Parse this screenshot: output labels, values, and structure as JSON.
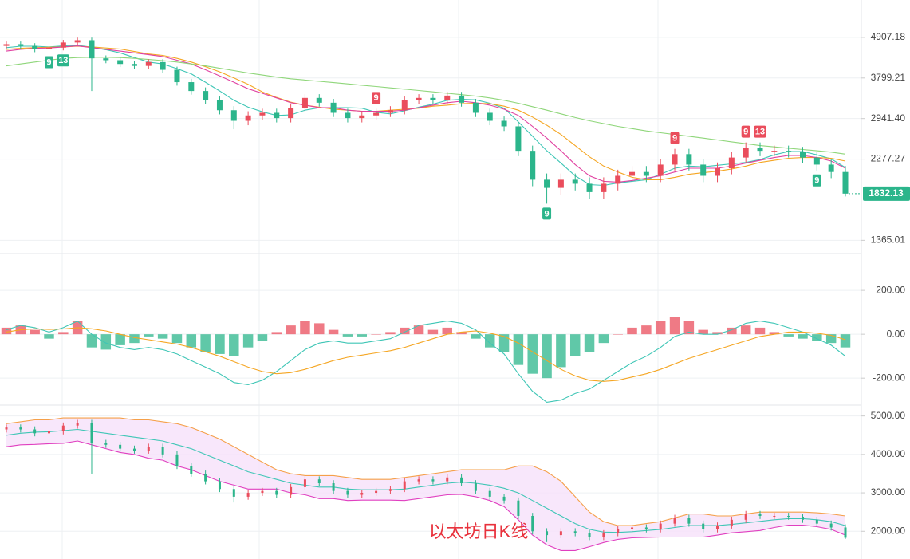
{
  "chart_data": [
    {
      "type": "candlestick",
      "open": [
        4650,
        4700,
        4650,
        4550,
        4600,
        4750,
        4820,
        4300,
        4250,
        4150,
        4100,
        4200,
        4000,
        3700,
        3500,
        3300,
        3100,
        2900,
        3000,
        3050,
        2950,
        3150,
        3350,
        3250,
        3050,
        2950,
        3000,
        3050,
        3100,
        3300,
        3350,
        3300,
        3400,
        3250,
        3050,
        2900,
        2800,
        2400,
        2000,
        1900,
        2000,
        1950,
        1850,
        1950,
        2050,
        2100,
        2050,
        2200,
        2350,
        2200,
        2050,
        2150,
        2300,
        2450,
        2400,
        2400,
        2380,
        2300,
        2200,
        2100
      ],
      "high": [
        4780,
        4780,
        4730,
        4680,
        4830,
        4900,
        4900,
        4380,
        4330,
        4230,
        4280,
        4280,
        4080,
        3780,
        3580,
        3380,
        3180,
        3080,
        3130,
        3130,
        3230,
        3430,
        3430,
        3330,
        3130,
        3080,
        3130,
        3180,
        3380,
        3430,
        3430,
        3480,
        3480,
        3330,
        3130,
        2980,
        2880,
        2480,
        2080,
        2080,
        2080,
        2030,
        2030,
        2130,
        2180,
        2180,
        2280,
        2430,
        2430,
        2280,
        2230,
        2380,
        2530,
        2530,
        2480,
        2480,
        2460,
        2380,
        2280,
        2180
      ],
      "low": [
        4570,
        4570,
        4470,
        4470,
        4520,
        4670,
        3500,
        4170,
        4070,
        4020,
        4020,
        3920,
        3620,
        3420,
        3220,
        3020,
        2750,
        2820,
        2920,
        2870,
        2870,
        3070,
        3170,
        2970,
        2870,
        2870,
        2920,
        2970,
        3020,
        3220,
        3220,
        3220,
        3170,
        2970,
        2820,
        2720,
        2320,
        1920,
        1720,
        1820,
        1870,
        1770,
        1770,
        1870,
        1970,
        1970,
        1970,
        2120,
        2120,
        1970,
        1970,
        2070,
        2220,
        2320,
        2320,
        2300,
        2220,
        2120,
        2020,
        1800
      ],
      "close": [
        4700,
        4650,
        4550,
        4600,
        4750,
        4820,
        4300,
        4250,
        4150,
        4100,
        4200,
        4000,
        3700,
        3500,
        3300,
        3100,
        2900,
        3000,
        3050,
        2950,
        3150,
        3350,
        3250,
        3050,
        2950,
        3000,
        3050,
        3100,
        3300,
        3350,
        3300,
        3400,
        3250,
        3050,
        2900,
        2800,
        2400,
        2000,
        1900,
        2000,
        1950,
        1850,
        1950,
        2050,
        2100,
        2050,
        2200,
        2350,
        2200,
        2050,
        2150,
        2300,
        2450,
        2400,
        2400,
        2380,
        2300,
        2200,
        2100,
        1832.13
      ],
      "up_color": "#ea4d5c",
      "down_color": "#2bb58b",
      "series": [
        {
          "color": "#3fc6b6",
          "values": [
            4600,
            4640,
            4640,
            4620,
            4650,
            4670,
            4610,
            4540,
            4450,
            4320,
            4200,
            4150,
            4030,
            3900,
            3700,
            3500,
            3300,
            3160,
            3070,
            3000,
            3010,
            3100,
            3150,
            3150,
            3150,
            3140,
            3060,
            3030,
            3090,
            3160,
            3220,
            3300,
            3320,
            3310,
            3240,
            3140,
            2880,
            2630,
            2400,
            2220,
            2050,
            1940,
            1930,
            1960,
            1980,
            2000,
            2070,
            2150,
            2180,
            2170,
            2190,
            2210,
            2230,
            2270,
            2340,
            2390,
            2390,
            2340,
            2280,
            2160
          ]
        },
        {
          "color": "#f5a623",
          "values": [
            4550,
            4580,
            4600,
            4610,
            4620,
            4640,
            4620,
            4590,
            4560,
            4490,
            4420,
            4380,
            4300,
            4200,
            4080,
            3950,
            3800,
            3650,
            3480,
            3360,
            3260,
            3200,
            3160,
            3120,
            3100,
            3080,
            3080,
            3100,
            3120,
            3140,
            3180,
            3200,
            3230,
            3240,
            3230,
            3180,
            3100,
            2970,
            2820,
            2660,
            2480,
            2310,
            2180,
            2100,
            2030,
            2000,
            2000,
            2030,
            2070,
            2090,
            2110,
            2140,
            2180,
            2230,
            2260,
            2290,
            2300,
            2300,
            2290,
            2250
          ]
        },
        {
          "color": "#e040a0",
          "values": [
            4500,
            4550,
            4580,
            4590,
            4620,
            4650,
            4600,
            4550,
            4500,
            4450,
            4400,
            4350,
            4250,
            4150,
            4000,
            3850,
            3700,
            3550,
            3450,
            3350,
            3250,
            3200,
            3150,
            3150,
            3100,
            3080,
            3080,
            3080,
            3100,
            3150,
            3200,
            3250,
            3280,
            3250,
            3200,
            3120,
            3000,
            2800,
            2600,
            2400,
            2200,
            2050,
            1980,
            1970,
            1990,
            2020,
            2050,
            2100,
            2150,
            2150,
            2150,
            2180,
            2220,
            2260,
            2300,
            2330,
            2330,
            2300,
            2250,
            2150
          ]
        },
        {
          "color": "#8fd67a",
          "values": [
            4100,
            4150,
            4200,
            4250,
            4300,
            4320,
            4330,
            4330,
            4320,
            4300,
            4270,
            4240,
            4200,
            4150,
            4100,
            4040,
            3980,
            3920,
            3870,
            3820,
            3780,
            3750,
            3720,
            3690,
            3660,
            3630,
            3600,
            3570,
            3540,
            3510,
            3480,
            3450,
            3420,
            3390,
            3350,
            3300,
            3240,
            3170,
            3100,
            3030,
            2960,
            2900,
            2850,
            2800,
            2760,
            2720,
            2690,
            2660,
            2630,
            2600,
            2570,
            2540,
            2510,
            2480,
            2460,
            2440,
            2420,
            2400,
            2380,
            2350
          ]
        }
      ],
      "td_buy": [
        null,
        null,
        null,
        "9",
        "13",
        null,
        null,
        null,
        null,
        null,
        null,
        null,
        null,
        null,
        null,
        null,
        null,
        null,
        null,
        null,
        null,
        null,
        null,
        null,
        null,
        null,
        null,
        null,
        null,
        null,
        null,
        null,
        null,
        null,
        null,
        null,
        null,
        null,
        "9",
        null,
        null,
        null,
        null,
        null,
        null,
        null,
        null,
        null,
        null,
        null,
        null,
        null,
        null,
        null,
        null,
        null,
        null,
        "9",
        null,
        null
      ],
      "td_sell": [
        null,
        null,
        null,
        null,
        null,
        null,
        null,
        null,
        null,
        null,
        null,
        null,
        null,
        null,
        null,
        null,
        null,
        null,
        null,
        null,
        null,
        null,
        null,
        null,
        null,
        null,
        "9",
        null,
        null,
        null,
        null,
        null,
        null,
        null,
        null,
        null,
        null,
        null,
        null,
        null,
        null,
        null,
        null,
        null,
        null,
        null,
        null,
        "9",
        null,
        null,
        null,
        null,
        "9",
        "13",
        null,
        null,
        null,
        null,
        null,
        null
      ],
      "log_scale": true,
      "ylim": [
        1307,
        6058
      ],
      "yticks": [
        {
          "value": 4907.18,
          "label": "4907.18"
        },
        {
          "value": 3799.21,
          "label": "3799.21"
        },
        {
          "value": 2941.4,
          "label": "2941.40"
        },
        {
          "value": 2277.27,
          "label": "2277.27"
        },
        {
          "value": 1365.01,
          "label": "1365.01"
        }
      ]
    },
    {
      "type": "macd",
      "histogram": [
        30,
        40,
        20,
        -20,
        10,
        60,
        -60,
        -70,
        -50,
        -40,
        -10,
        -20,
        -40,
        -60,
        -80,
        -90,
        -100,
        -60,
        -30,
        10,
        40,
        60,
        50,
        20,
        -10,
        -10,
        0,
        10,
        30,
        40,
        20,
        30,
        10,
        -20,
        -60,
        -80,
        -140,
        -180,
        -200,
        -150,
        -100,
        -80,
        -40,
        0,
        30,
        40,
        60,
        80,
        60,
        20,
        10,
        30,
        40,
        30,
        10,
        -10,
        -20,
        -30,
        -40,
        -60
      ],
      "up_color": "#ea4d5c",
      "down_color": "#2bb58b",
      "series": [
        {
          "color": "#3fc6b6",
          "values": [
            20,
            40,
            30,
            10,
            30,
            60,
            0,
            -40,
            -60,
            -70,
            -60,
            -70,
            -90,
            -120,
            -150,
            -180,
            -220,
            -230,
            -210,
            -170,
            -120,
            -70,
            -40,
            -30,
            -40,
            -40,
            -30,
            -20,
            10,
            40,
            50,
            60,
            50,
            20,
            -40,
            -90,
            -180,
            -260,
            -310,
            -300,
            -270,
            -250,
            -210,
            -170,
            -130,
            -100,
            -60,
            -10,
            10,
            0,
            0,
            20,
            50,
            60,
            50,
            30,
            10,
            -20,
            -50,
            -100
          ]
        },
        {
          "color": "#f5a623",
          "values": [
            10,
            20,
            25,
            22,
            24,
            30,
            25,
            15,
            0,
            -15,
            -25,
            -35,
            -45,
            -60,
            -80,
            -100,
            -125,
            -150,
            -170,
            -180,
            -175,
            -160,
            -140,
            -120,
            -105,
            -95,
            -85,
            -75,
            -60,
            -40,
            -20,
            0,
            10,
            15,
            5,
            -10,
            -40,
            -80,
            -120,
            -160,
            -190,
            -210,
            -215,
            -210,
            -195,
            -180,
            -160,
            -135,
            -110,
            -90,
            -70,
            -50,
            -30,
            -10,
            0,
            10,
            10,
            5,
            -5,
            -25
          ]
        }
      ],
      "ylim": [
        -312,
        324
      ],
      "yticks": [
        {
          "value": 200,
          "label": "200.00"
        },
        {
          "value": 0,
          "label": "0.00"
        },
        {
          "value": -200,
          "label": "-200.00"
        }
      ]
    },
    {
      "type": "bollinger",
      "band_fill": "#f6e1fa",
      "series": [
        {
          "color": "#f5a04a",
          "values": [
            4800,
            4850,
            4900,
            4900,
            4950,
            4950,
            4950,
            4950,
            4950,
            4900,
            4900,
            4850,
            4800,
            4700,
            4550,
            4400,
            4200,
            4000,
            3800,
            3600,
            3500,
            3450,
            3450,
            3450,
            3400,
            3350,
            3350,
            3350,
            3400,
            3450,
            3500,
            3550,
            3600,
            3600,
            3600,
            3600,
            3700,
            3700,
            3550,
            3300,
            2900,
            2500,
            2250,
            2150,
            2150,
            2200,
            2250,
            2350,
            2450,
            2450,
            2400,
            2400,
            2450,
            2500,
            2500,
            2500,
            2500,
            2480,
            2450,
            2400
          ]
        },
        {
          "color": "#3fc6b6",
          "values": [
            4500,
            4550,
            4580,
            4590,
            4620,
            4650,
            4600,
            4550,
            4500,
            4450,
            4400,
            4350,
            4250,
            4150,
            4000,
            3850,
            3700,
            3550,
            3450,
            3350,
            3250,
            3200,
            3150,
            3150,
            3100,
            3080,
            3080,
            3080,
            3100,
            3150,
            3200,
            3250,
            3280,
            3250,
            3200,
            3120,
            3000,
            2800,
            2600,
            2400,
            2200,
            2050,
            1980,
            1970,
            1990,
            2020,
            2050,
            2100,
            2150,
            2150,
            2150,
            2180,
            2220,
            2260,
            2300,
            2330,
            2330,
            2300,
            2250,
            2150
          ]
        },
        {
          "color": "#e040c0",
          "values": [
            4200,
            4250,
            4260,
            4280,
            4290,
            4350,
            4250,
            4150,
            4050,
            4000,
            3900,
            3850,
            3700,
            3600,
            3450,
            3300,
            3200,
            3100,
            3100,
            3100,
            3000,
            2950,
            2850,
            2850,
            2800,
            2810,
            2810,
            2810,
            2800,
            2850,
            2900,
            2950,
            2960,
            2900,
            2800,
            2640,
            2300,
            1900,
            1650,
            1500,
            1500,
            1600,
            1710,
            1790,
            1830,
            1840,
            1850,
            1850,
            1850,
            1850,
            1900,
            1960,
            1990,
            2020,
            2100,
            2160,
            2160,
            2120,
            2050,
            1900
          ]
        }
      ],
      "annotation": "以太坊日K线",
      "ylim": [
        1280,
        5200
      ],
      "yticks": [
        {
          "value": 5000,
          "label": "5000.00"
        },
        {
          "value": 4000,
          "label": "4000.00"
        },
        {
          "value": 3000,
          "label": "3000.00"
        },
        {
          "value": 2000,
          "label": "2000.00"
        }
      ]
    }
  ]
}
